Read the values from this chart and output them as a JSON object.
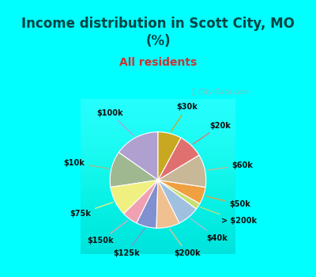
{
  "title": "Income distribution in Scott City, MO\n(%)",
  "subtitle": "All residents",
  "title_color": "#004444",
  "subtitle_color": "#cc3333",
  "bg_cyan": "#00ffff",
  "bg_chart_top": "#e8f8f0",
  "bg_chart_bottom": "#d0f0d8",
  "labels": [
    "$100k",
    "$10k",
    "$75k",
    "$150k",
    "$125k",
    "$200k",
    "$40k",
    "> $200k",
    "$50k",
    "$60k",
    "$20k",
    "$30k"
  ],
  "values": [
    14.5,
    11.5,
    9.5,
    5.0,
    6.5,
    7.5,
    7.0,
    2.0,
    5.5,
    10.5,
    8.0,
    7.5
  ],
  "colors": [
    "#b0a0d0",
    "#a0b890",
    "#f0f080",
    "#f0a0b0",
    "#8090d0",
    "#f0c090",
    "#a0c0e0",
    "#c8e070",
    "#f0a040",
    "#c8b898",
    "#e07070",
    "#c8a820"
  ],
  "label_fontsize": 7.0,
  "wedge_linewidth": 0.8,
  "wedge_edgecolor": "#ffffff",
  "startangle": 90,
  "title_fontsize": 12,
  "subtitle_fontsize": 10
}
